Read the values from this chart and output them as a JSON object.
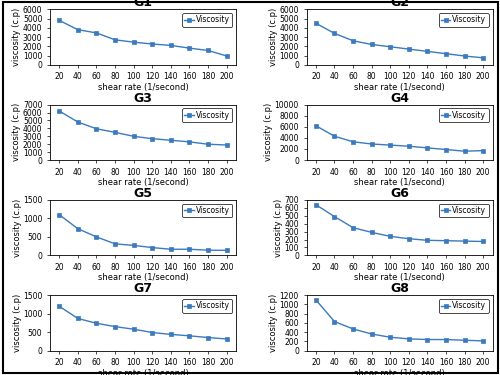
{
  "shear_rate": [
    20,
    40,
    60,
    80,
    100,
    120,
    140,
    160,
    180,
    200
  ],
  "G1": [
    4800,
    3800,
    3450,
    2700,
    2450,
    2250,
    2100,
    1800,
    1550,
    950
  ],
  "G2": [
    4500,
    3400,
    2600,
    2200,
    1950,
    1700,
    1450,
    1200,
    950,
    750
  ],
  "G3": [
    6200,
    4800,
    3950,
    3500,
    3000,
    2700,
    2500,
    2300,
    2000,
    1900
  ],
  "G4": [
    6200,
    4300,
    3300,
    2900,
    2700,
    2500,
    2200,
    1900,
    1600,
    1700
  ],
  "G5": [
    1100,
    720,
    500,
    310,
    270,
    210,
    165,
    165,
    140,
    135
  ],
  "G6": [
    640,
    490,
    350,
    290,
    240,
    210,
    190,
    185,
    180,
    175
  ],
  "G7": [
    1200,
    870,
    740,
    650,
    580,
    490,
    440,
    400,
    355,
    315
  ],
  "G8": [
    1100,
    630,
    470,
    360,
    290,
    255,
    240,
    240,
    225,
    210
  ],
  "G1_ylim": [
    0,
    6000
  ],
  "G2_ylim": [
    0,
    6000
  ],
  "G3_ylim": [
    0,
    7000
  ],
  "G4_ylim": [
    0,
    10000
  ],
  "G5_ylim": [
    0,
    1500
  ],
  "G6_ylim": [
    0,
    700
  ],
  "G7_ylim": [
    0,
    1500
  ],
  "G8_ylim": [
    0,
    1200
  ],
  "G1_yticks": [
    0,
    1000,
    2000,
    3000,
    4000,
    5000,
    6000
  ],
  "G2_yticks": [
    0,
    1000,
    2000,
    3000,
    4000,
    5000,
    6000
  ],
  "G3_yticks": [
    0,
    1000,
    2000,
    3000,
    4000,
    5000,
    6000,
    7000
  ],
  "G4_yticks": [
    0,
    2000,
    4000,
    6000,
    8000,
    10000
  ],
  "G5_yticks": [
    0,
    500,
    1000,
    1500
  ],
  "G6_yticks": [
    0,
    100,
    200,
    300,
    400,
    500,
    600,
    700
  ],
  "G7_yticks": [
    0,
    500,
    1000,
    1500
  ],
  "G8_yticks": [
    0,
    200,
    400,
    600,
    800,
    1000,
    1200
  ],
  "line_color": "#3a7abf",
  "marker": "s",
  "marker_size": 3,
  "xlabel": "shear rate (1/second)",
  "ylabel": "viscosity (c.p)",
  "legend_label": "Viscosity",
  "title_fontsize": 9,
  "axis_fontsize": 6,
  "tick_fontsize": 5.5,
  "legend_fontsize": 5.5,
  "bg_color": "#ffffff",
  "outer_border_color": "#000000"
}
